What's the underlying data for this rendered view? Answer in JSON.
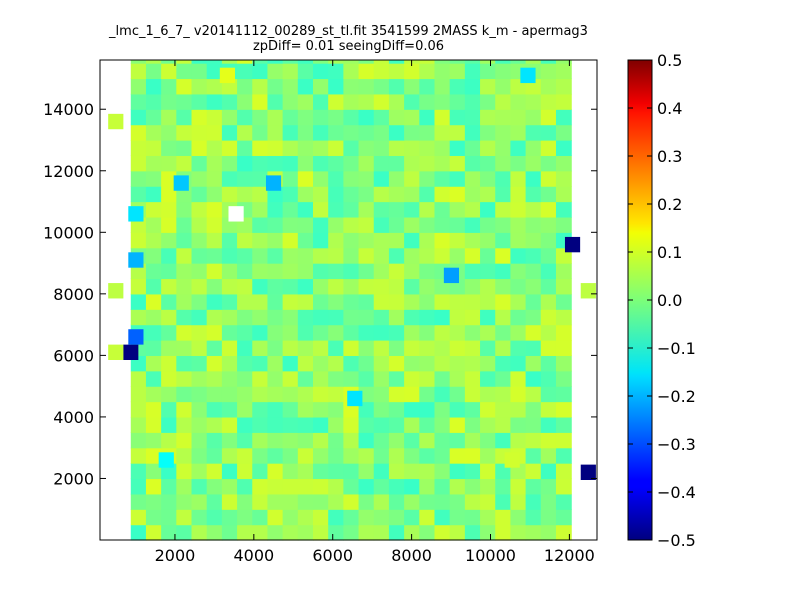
{
  "chart_data": {
    "type": "heatmap",
    "title_line1": "_lmc_1_6_7_ v20141112_00289_st_tl.fit 3541599 2MASS k_m - apermag3",
    "title_line2": "zpDiff= 0.01 seeingDiff=0.06",
    "xlim": [
      100,
      12700
    ],
    "ylim": [
      0,
      15600
    ],
    "x_ticks": [
      2000,
      4000,
      6000,
      8000,
      10000,
      12000
    ],
    "x_tick_labels": [
      "2000",
      "4000",
      "6000",
      "8000",
      "10000",
      "12000"
    ],
    "y_ticks": [
      2000,
      4000,
      6000,
      8000,
      10000,
      12000,
      14000
    ],
    "y_tick_labels": [
      "2000",
      "4000",
      "6000",
      "8000",
      "10000",
      "12000",
      "14000"
    ],
    "colorbar": {
      "min": -0.5,
      "max": 0.5,
      "colormap": "jet",
      "ticks": [
        -0.5,
        -0.4,
        -0.3,
        -0.2,
        -0.1,
        0.0,
        0.1,
        0.2,
        0.3,
        0.4,
        0.5
      ],
      "tick_labels": [
        "−0.5",
        "−0.4",
        "−0.3",
        "−0.2",
        "−0.1",
        "0.0",
        "0.1",
        "0.2",
        "0.3",
        "0.4",
        "0.5"
      ]
    },
    "grid": false,
    "cell_size": {
      "x": 385,
      "y": 500
    },
    "rows_y_start": 0,
    "description": "Heatmap of apermag3 differences across detector x-y; values mostly between -0.1 and 0.1",
    "cells": [
      {
        "x": 880,
        "y": 6100,
        "value": -0.5
      },
      {
        "x": 12080,
        "y": 9600,
        "value": -0.5
      },
      {
        "x": 12480,
        "y": 2200,
        "value": -0.5
      },
      {
        "x": 1010,
        "y": 6600,
        "value": -0.28
      },
      {
        "x": 9010,
        "y": 8600,
        "value": -0.22
      },
      {
        "x": 4500,
        "y": 11600,
        "value": -0.2
      },
      {
        "x": 1010,
        "y": 9100,
        "value": -0.2
      },
      {
        "x": 2160,
        "y": 11600,
        "value": -0.18
      },
      {
        "x": 1010,
        "y": 10600,
        "value": -0.15
      },
      {
        "x": 6560,
        "y": 4600,
        "value": -0.15
      },
      {
        "x": 10950,
        "y": 15100,
        "value": -0.15
      },
      {
        "x": 3550,
        "y": 10600,
        "value": 0.55
      },
      {
        "x": 1780,
        "y": 2600,
        "value": -0.12
      },
      {
        "x": 3330,
        "y": 15100,
        "value": 0.1
      },
      {
        "x": 10550,
        "y": 2600,
        "value": 0.08
      },
      {
        "x": 500,
        "y": 13600,
        "value": 0.07
      },
      {
        "x": 500,
        "y": 6100,
        "value": 0.07
      },
      {
        "x": 500,
        "y": 8100,
        "value": 0.06
      },
      {
        "x": 12480,
        "y": 8100,
        "value": 0.06
      }
    ]
  }
}
